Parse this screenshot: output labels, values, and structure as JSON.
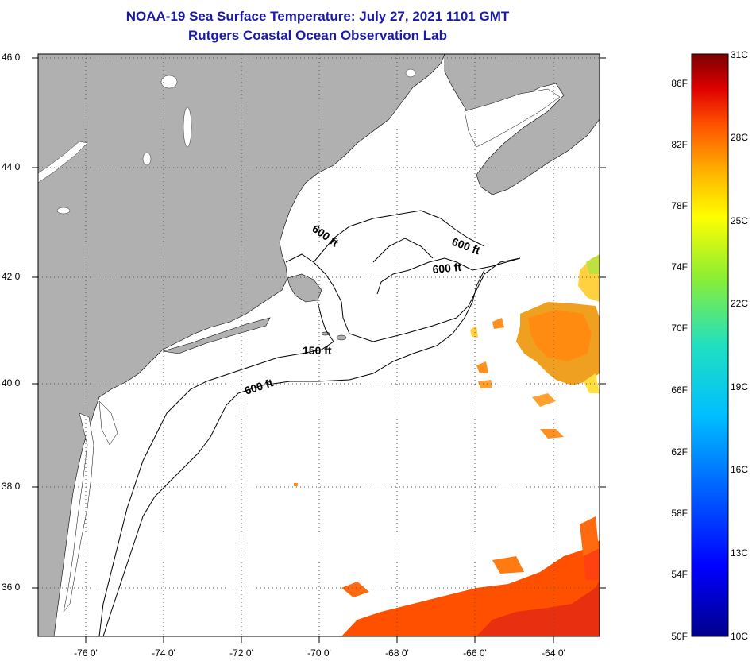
{
  "title": {
    "line1": "NOAA-19 Sea Surface Temperature:  July 27, 2021 1101 GMT",
    "line2": "Rutgers Coastal Ocean Observation Lab"
  },
  "map": {
    "lat_ticks": [
      "46 0'",
      "44 0'",
      "42 0'",
      "40 0'",
      "38 0'",
      "36 0'"
    ],
    "lon_ticks": [
      "-76 0'",
      "-74 0'",
      "-72 0'",
      "-70 0'",
      "-68 0'",
      "-66 0'",
      "-64 0'"
    ],
    "contour_labels": [
      "600 ft",
      "600 ft",
      "600 ft",
      "150 ft",
      "600 ft"
    ],
    "land_color": "#b0b0b0",
    "water_color": "#ffffff"
  },
  "colorbar": {
    "fahrenheit": [
      "86F",
      "82F",
      "78F",
      "74F",
      "70F",
      "66F",
      "62F",
      "58F",
      "54F",
      "50F"
    ],
    "celsius": [
      "31C",
      "28C",
      "25C",
      "22C",
      "19C",
      "16C",
      "13C",
      "10C"
    ]
  }
}
